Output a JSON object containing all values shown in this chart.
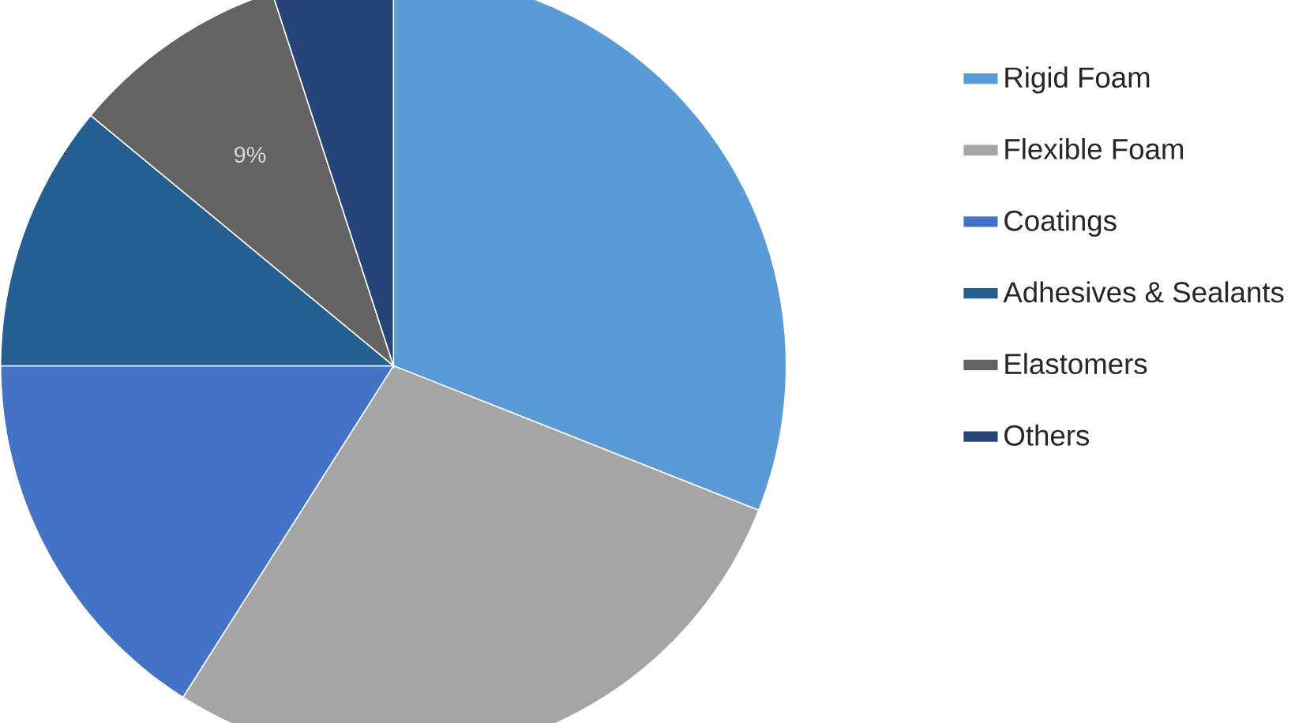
{
  "chart_data": {
    "type": "pie",
    "categories": [
      "Rigid Foam",
      "Flexible Foam",
      "Coatings",
      "Adhesives & Sealants",
      "Elastomers",
      "Others"
    ],
    "values": [
      31,
      28,
      16,
      11,
      9,
      5
    ],
    "colors": [
      "#5b9bd5",
      "#a5a5a5",
      "#4472c4",
      "#255e91",
      "#636363",
      "#264478"
    ],
    "value_labels": [
      null,
      null,
      null,
      null,
      "9%",
      null
    ],
    "legend": "right"
  }
}
